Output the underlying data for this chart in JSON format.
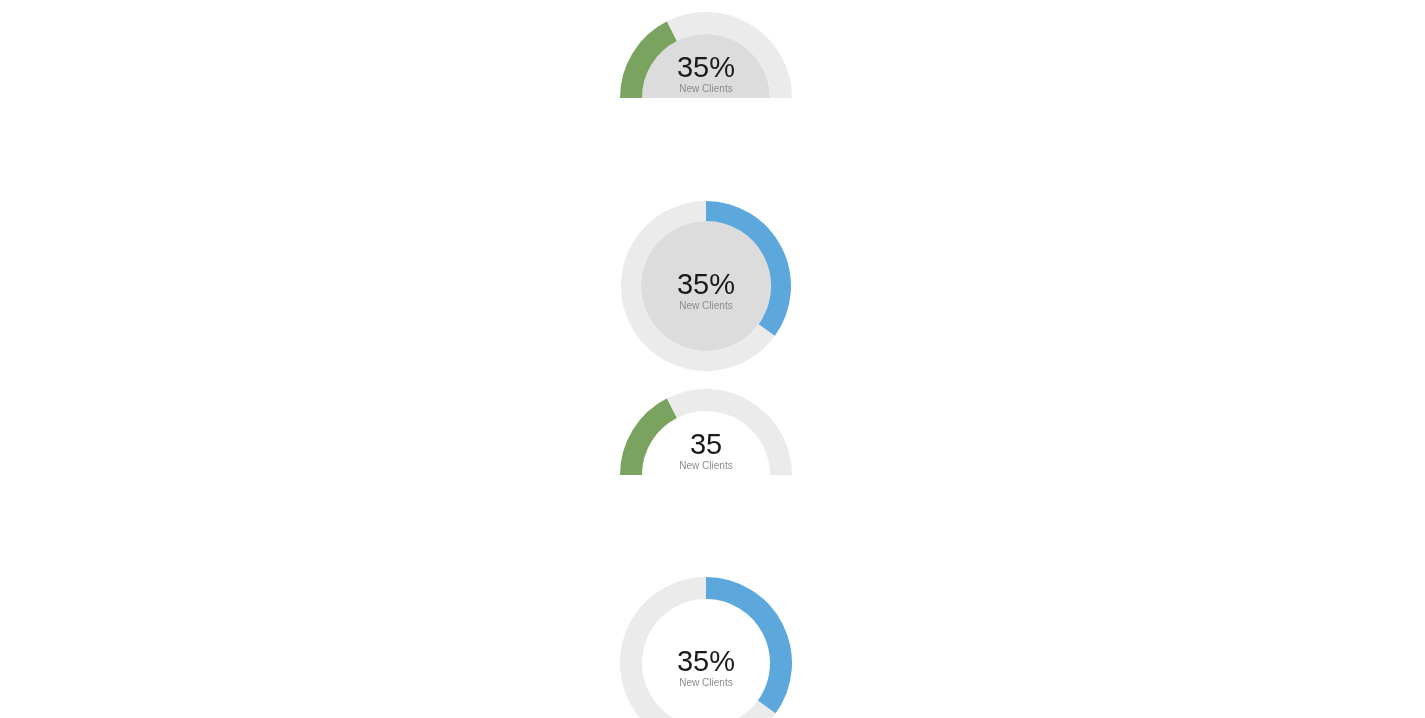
{
  "chart_data": [
    {
      "type": "donut",
      "categories": [
        null,
        null
      ],
      "values": [
        35,
        65
      ],
      "colors": [
        "#7aa35f",
        "#ebebeb"
      ],
      "annotations": [
        "35%",
        "New Clients"
      ]
    },
    {
      "type": "donut",
      "categories": [
        null,
        null
      ],
      "values": [
        35,
        65
      ],
      "colors": [
        "#5ca8dc",
        "#ebebeb"
      ],
      "annotations": [
        "35%",
        "New Clients"
      ]
    },
    {
      "type": "donut",
      "categories": [
        null,
        null
      ],
      "values": [
        35,
        65
      ],
      "colors": [
        "#7aa35f",
        "#ebebeb"
      ],
      "annotations": [
        "35",
        "New Clients"
      ]
    },
    {
      "type": "donut",
      "categories": [
        null,
        null
      ],
      "values": [
        35,
        65
      ],
      "colors": [
        "#5ca8dc",
        "#ebebeb"
      ],
      "annotations": [
        "35%",
        "New Clients"
      ]
    }
  ]
}
